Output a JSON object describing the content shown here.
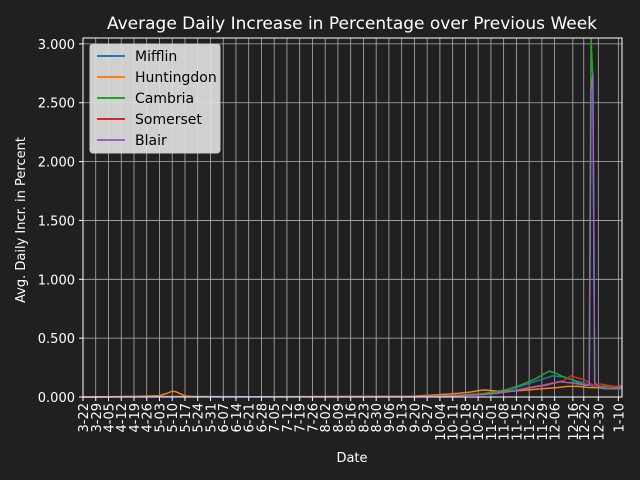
{
  "chart_data": {
    "type": "line",
    "title": "Average Daily Increase in Percentage over Previous Week",
    "xlabel": "Date",
    "ylabel": "Avg. Daily Incr. in Percent",
    "ylim": [
      0,
      3.05
    ],
    "yticks": [
      "0.000",
      "0.500",
      "1.000",
      "1.500",
      "2.000",
      "2.500",
      "3.000"
    ],
    "ytick_values": [
      0,
      0.5,
      1.0,
      1.5,
      2.0,
      2.5,
      3.0
    ],
    "grid": true,
    "legend_position": "top-left",
    "x_start": "3-22",
    "x_end": "1-10",
    "xtick_labels": [
      "3-22",
      "3-29",
      "4-05",
      "4-12",
      "4-19",
      "4-26",
      "5-03",
      "5-10",
      "5-17",
      "5-24",
      "5-31",
      "6-07",
      "6-14",
      "6-21",
      "6-28",
      "7-05",
      "7-12",
      "7-19",
      "7-26",
      "8-02",
      "8-09",
      "8-16",
      "8-23",
      "8-30",
      "9-06",
      "9-13",
      "9-20",
      "9-27",
      "10-04",
      "10-11",
      "10-18",
      "10-25",
      "11-01",
      "11-08",
      "11-15",
      "11-22",
      "11-29",
      "12-06",
      "12-16",
      "12-22",
      "12-30",
      "1-10"
    ],
    "xtick_days": [
      0,
      7,
      14,
      21,
      28,
      35,
      42,
      49,
      56,
      63,
      70,
      77,
      84,
      91,
      98,
      105,
      112,
      119,
      126,
      133,
      140,
      147,
      154,
      161,
      168,
      175,
      182,
      189,
      196,
      203,
      210,
      217,
      224,
      231,
      238,
      245,
      252,
      259,
      269,
      275,
      283,
      294
    ],
    "x_max_day": 296,
    "series": [
      {
        "name": "Mifflin",
        "color": "#1f77b4",
        "x": [
          0,
          40,
          60,
          120,
          180,
          200,
          215,
          228,
          235,
          242,
          250,
          258,
          264,
          270,
          275,
          278,
          280,
          282,
          286,
          290,
          296
        ],
        "values": [
          0,
          0.005,
          0.003,
          0.002,
          0.004,
          0.01,
          0.02,
          0.03,
          0.06,
          0.1,
          0.14,
          0.18,
          0.17,
          0.14,
          0.12,
          0.1,
          0.09,
          0.08,
          0.07,
          0.07,
          0.07
        ]
      },
      {
        "name": "Huntingdon",
        "color": "#ff7f0e",
        "x": [
          0,
          30,
          42,
          46,
          49,
          51,
          53,
          56,
          60,
          70,
          120,
          180,
          196,
          205,
          212,
          220,
          228,
          236,
          244,
          252,
          260,
          266,
          272,
          278,
          284,
          290,
          296
        ],
        "values": [
          0,
          0.005,
          0.012,
          0.03,
          0.05,
          0.045,
          0.03,
          0.01,
          0.004,
          0.002,
          0.003,
          0.006,
          0.02,
          0.03,
          0.04,
          0.06,
          0.05,
          0.05,
          0.06,
          0.07,
          0.08,
          0.09,
          0.09,
          0.08,
          0.08,
          0.07,
          0.08
        ]
      },
      {
        "name": "Cambria",
        "color": "#2ca02c",
        "x": [
          0,
          40,
          120,
          180,
          200,
          220,
          232,
          240,
          248,
          256,
          260,
          264,
          268,
          272,
          276,
          278,
          279,
          280,
          281,
          282,
          284,
          288,
          292,
          296
        ],
        "values": [
          0,
          0.003,
          0.002,
          0.004,
          0.01,
          0.03,
          0.06,
          0.1,
          0.15,
          0.22,
          0.2,
          0.17,
          0.15,
          0.12,
          0.1,
          0.1,
          3.05,
          2.7,
          0.12,
          0.1,
          0.09,
          0.09,
          0.08,
          0.09
        ]
      },
      {
        "name": "Somerset",
        "color": "#d62728",
        "x": [
          0,
          40,
          120,
          180,
          200,
          220,
          236,
          244,
          252,
          258,
          264,
          268,
          272,
          275,
          278,
          280,
          284,
          288,
          292,
          296
        ],
        "values": [
          0,
          0.003,
          0.002,
          0.003,
          0.008,
          0.02,
          0.05,
          0.08,
          0.1,
          0.12,
          0.14,
          0.18,
          0.16,
          0.15,
          0.12,
          0.1,
          0.11,
          0.1,
          0.09,
          0.1
        ]
      },
      {
        "name": "Blair",
        "color": "#9467bd",
        "x": [
          0,
          40,
          120,
          180,
          200,
          220,
          236,
          246,
          254,
          262,
          268,
          272,
          276,
          278,
          279,
          280,
          281,
          282,
          284,
          288,
          292,
          296
        ],
        "values": [
          0,
          0.003,
          0.002,
          0.003,
          0.008,
          0.02,
          0.05,
          0.08,
          0.1,
          0.13,
          0.12,
          0.11,
          0.1,
          0.1,
          2.6,
          2.75,
          0.12,
          0.1,
          0.08,
          0.07,
          0.07,
          0.08
        ]
      }
    ]
  }
}
